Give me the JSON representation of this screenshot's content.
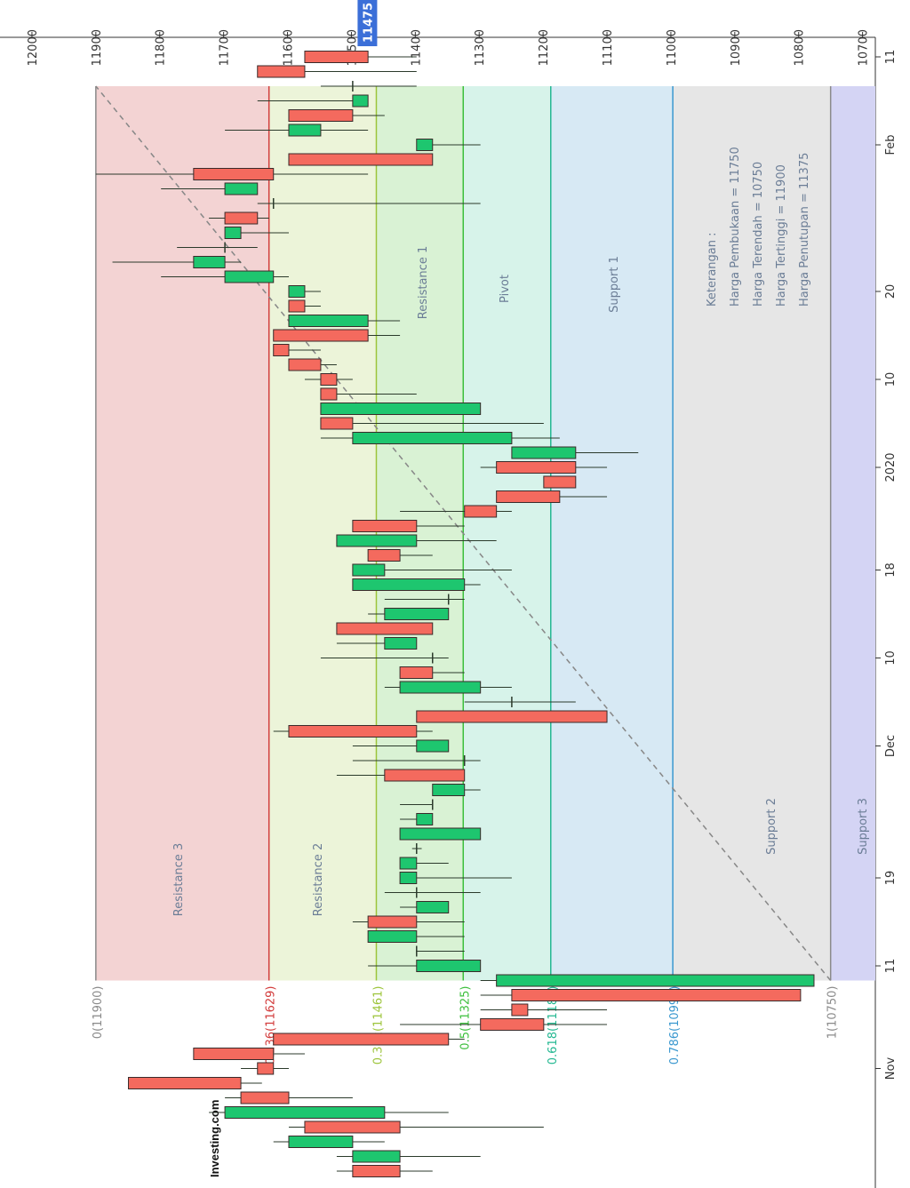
{
  "chart_data": {
    "type": "candlestick",
    "categories": [
      null,
      null,
      null,
      null,
      null,
      null,
      null,
      "Nov",
      null,
      null,
      null,
      null,
      null,
      null,
      "11",
      null,
      null,
      null,
      null,
      null,
      "19",
      null,
      null,
      null,
      null,
      null,
      null,
      null,
      null,
      "Dec",
      null,
      null,
      null,
      null,
      null,
      "10",
      null,
      null,
      null,
      null,
      null,
      "18",
      null,
      null,
      null,
      null,
      null,
      null,
      "2020",
      null,
      null,
      null,
      null,
      null,
      "10",
      null,
      null,
      null,
      null,
      null,
      "20",
      null,
      null,
      null,
      null,
      null,
      null,
      null,
      null,
      null,
      "Feb",
      null,
      null,
      null,
      null,
      null,
      "11"
    ],
    "open": [
      11498,
      11424,
      11498,
      11573,
      11448,
      11673,
      11849,
      11647,
      11747,
      11622,
      11298,
      11249,
      11249,
      10776,
      11298,
      11396,
      11398,
      11474,
      11348,
      11398,
      11398,
      11398,
      11398,
      11298,
      11373,
      11373,
      11323,
      11448,
      11323,
      11348,
      11598,
      11398,
      11249,
      11298,
      11424,
      11373,
      11398,
      11523,
      11348,
      11348,
      11323,
      11448,
      11474,
      11398,
      11498,
      11323,
      11273,
      11199,
      11273,
      11149,
      11249,
      11548,
      11298,
      11548,
      11548,
      11598,
      11622,
      11622,
      11474,
      11598,
      11573,
      11622,
      11698,
      11698,
      11673,
      11698,
      11622,
      11647,
      11747,
      11598,
      11373,
      11548,
      11598,
      11474,
      11498,
      11647,
      11573
    ],
    "high": [
      11523,
      11523,
      11622,
      11598,
      11723,
      11698,
      11849,
      11673,
      11747,
      11622,
      11424,
      11298,
      11298,
      11298,
      11474,
      11398,
      11474,
      11498,
      11424,
      11448,
      11424,
      11424,
      11405,
      11424,
      11424,
      11424,
      11373,
      11523,
      11498,
      11498,
      11622,
      11398,
      11323,
      11448,
      11424,
      11548,
      11523,
      11523,
      11474,
      11448,
      11498,
      11498,
      11474,
      11523,
      11498,
      11424,
      11273,
      11199,
      11298,
      11249,
      11548,
      11548,
      11548,
      11548,
      11573,
      11598,
      11622,
      11622,
      11598,
      11598,
      11598,
      11798,
      11874,
      11773,
      11698,
      11723,
      11647,
      11798,
      11900,
      11598,
      11398,
      11698,
      11598,
      11647,
      11548,
      11647,
      11573
    ],
    "low": [
      11373,
      11298,
      11448,
      11199,
      11348,
      11498,
      11640,
      11598,
      11573,
      11323,
      11100,
      11100,
      10797,
      10776,
      11298,
      11323,
      11323,
      11323,
      11348,
      11298,
      11249,
      11348,
      11390,
      11298,
      11373,
      11373,
      11298,
      11323,
      11298,
      11348,
      11373,
      11100,
      11149,
      11249,
      11323,
      11348,
      11398,
      11373,
      11348,
      11323,
      11298,
      11249,
      11373,
      11273,
      11323,
      11249,
      11100,
      11149,
      11100,
      11051,
      11174,
      11199,
      11298,
      11398,
      11498,
      11523,
      11548,
      11424,
      11424,
      11548,
      11548,
      11598,
      11673,
      11647,
      11598,
      11629,
      11298,
      11647,
      11474,
      11373,
      11298,
      11474,
      11448,
      11474,
      11398,
      11398,
      11398
    ],
    "close": [
      11424,
      11498,
      11598,
      11424,
      11698,
      11598,
      11673,
      11622,
      11622,
      11348,
      11199,
      11224,
      10797,
      11273,
      11398,
      11398,
      11474,
      11398,
      11398,
      11398,
      11424,
      11424,
      11398,
      11424,
      11398,
      11373,
      11373,
      11323,
      11323,
      11398,
      11398,
      11100,
      11249,
      11424,
      11373,
      11373,
      11448,
      11373,
      11448,
      11348,
      11498,
      11498,
      11424,
      11523,
      11398,
      11273,
      11174,
      11149,
      11149,
      11249,
      11498,
      11498,
      11548,
      11523,
      11523,
      11548,
      11598,
      11474,
      11598,
      11573,
      11598,
      11698,
      11747,
      11698,
      11698,
      11647,
      11622,
      11698,
      11622,
      11373,
      11398,
      11598,
      11498,
      11498,
      11498,
      11573,
      11474
    ],
    "up_color": "#1ec66f",
    "down_color": "#f46a5e",
    "ylim": [
      10680,
      12050
    ],
    "yticks": [
      12000,
      11900,
      11800,
      11700,
      11600,
      11500,
      11400,
      11300,
      11200,
      11100,
      11000,
      10900,
      10800,
      10700
    ],
    "last_price": 11475,
    "fib": {
      "levels": [
        {
          "value": 11900,
          "label": "0(11900)",
          "color": "#8a8a8a"
        },
        {
          "value": 11629,
          "label": "0.236(11629)",
          "color": "#d23a3a"
        },
        {
          "value": 11461,
          "label": "0.382(11461)",
          "color": "#9cc43a"
        },
        {
          "value": 11325,
          "label": "0.5(11325)",
          "color": "#3cbf3c"
        },
        {
          "value": 11188,
          "label": "0.618(11188)",
          "color": "#25b892"
        },
        {
          "value": 10997,
          "label": "0.786(10997)",
          "color": "#3a98cf"
        },
        {
          "value": 10750,
          "label": "1(10750)",
          "color": "#8a8a8a"
        }
      ],
      "zones": [
        {
          "name": "Resistance 3",
          "color": "#f3d3d3"
        },
        {
          "name": "Resistance 2",
          "color": "#ecf4d9"
        },
        {
          "name": "Resistance 1",
          "color": "#d9f2d4"
        },
        {
          "name": "Pivot",
          "color": "#d7f3ea"
        },
        {
          "name": "Support 1",
          "color": "#d7e9f4"
        },
        {
          "name": "Support 2",
          "color": "#e6e6e6"
        },
        {
          "name": "Support 3",
          "color": "#d4d4f4"
        }
      ]
    },
    "annotations": [
      "Keterangan :",
      "Harga Pembukaan = 11750",
      "Harga Terendah = 10750",
      "Harga Tertinggi = 11900",
      "Harga Penutupan = 11375"
    ],
    "logo": "Investing.com"
  }
}
